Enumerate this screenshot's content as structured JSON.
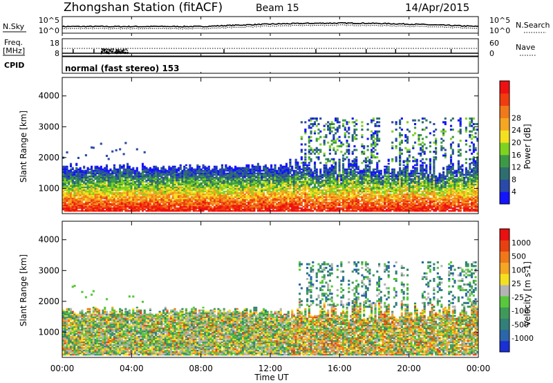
{
  "header": {
    "station": "Zhongshan Station (fitACF)",
    "beam": "Beam 15",
    "date": "14/Apr/2015"
  },
  "chart_data": [
    {
      "type": "line",
      "name": "noise-panel",
      "left_label": "N.Sky",
      "right_label": "N.Search",
      "left_ticks": [
        "10^5",
        "10^0"
      ],
      "right_ticks": [
        "10^5",
        "10^0"
      ]
    },
    {
      "type": "line",
      "name": "frequency-panel",
      "left_label_1": "Freq.",
      "left_label_2": "[MHz]",
      "right_label": "Nave",
      "left_ticks": [
        "18",
        "8"
      ],
      "right_ticks": [
        "60",
        "0"
      ]
    },
    {
      "type": "table",
      "name": "cpid-panel",
      "label": "CPID",
      "value": "normal (fast stereo) 153"
    },
    {
      "type": "heatmap",
      "name": "power-panel",
      "ylabel": "Slant Range [km]",
      "y_ticks": [
        "1000",
        "2000",
        "3000",
        "4000"
      ],
      "ylim": [
        180,
        4600
      ],
      "colorbar_label": "Power [dB]",
      "colorbar_ticks": [
        "4",
        "8",
        "12",
        "16",
        "20",
        "24",
        "28"
      ],
      "colors": [
        "#1414ff",
        "#2a4aa8",
        "#2f6e6e",
        "#3c9a46",
        "#7ed321",
        "#f5e020",
        "#f5a623",
        "#f07a1a",
        "#f03c0f",
        "#ee1111"
      ]
    },
    {
      "type": "heatmap",
      "name": "velocity-panel",
      "ylabel": "Slant Range [km]",
      "y_ticks": [
        "1000",
        "2000",
        "3000",
        "4000"
      ],
      "ylim": [
        180,
        4600
      ],
      "colorbar_label": "Velocity [m s-1]",
      "colorbar_ticks": [
        "1000",
        "500",
        "100",
        "25",
        "-25",
        "-100",
        "-500",
        "-1000"
      ],
      "colors": [
        "#1a2fd6",
        "#2a66a8",
        "#337f7a",
        "#3f9a5a",
        "#58c83c",
        "#b4b4b4",
        "#f5e020",
        "#f5a623",
        "#f0781a",
        "#e84010",
        "#e81010"
      ]
    }
  ],
  "x_axis": {
    "label": "Time UT",
    "ticks": [
      "00:00",
      "04:00",
      "08:00",
      "12:00",
      "16:00",
      "20:00",
      "00:00"
    ]
  }
}
